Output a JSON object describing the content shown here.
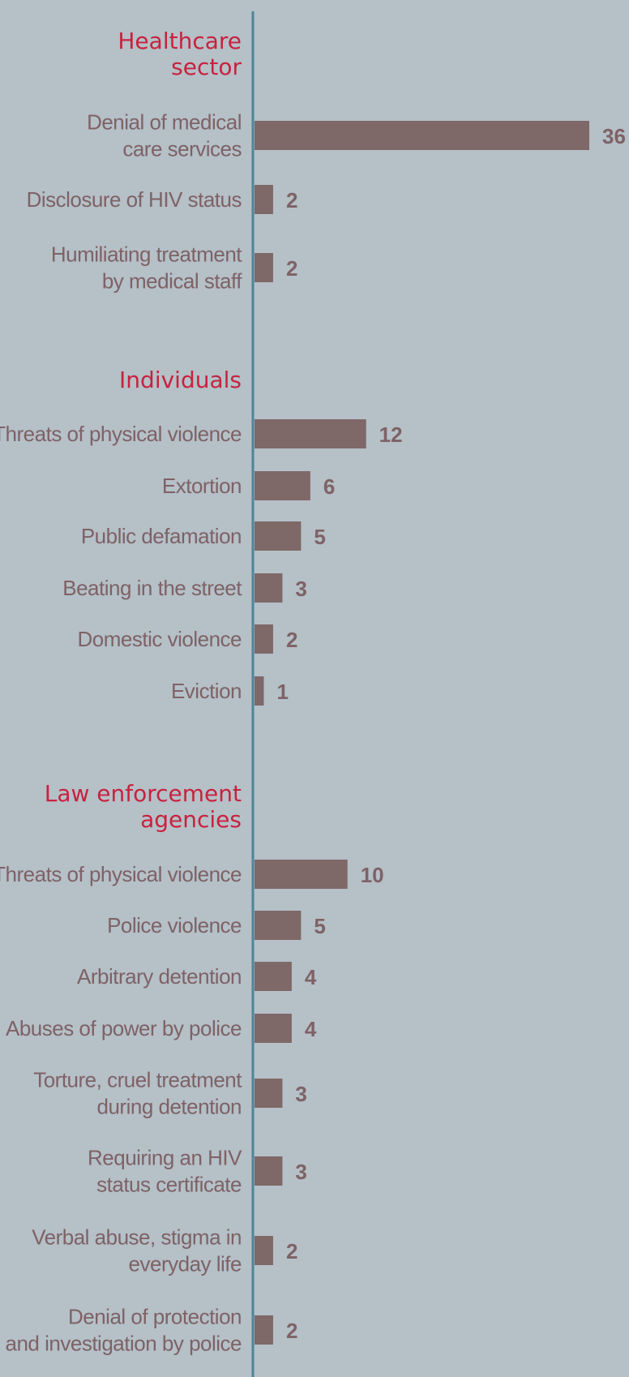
{
  "colors": {
    "background": "#b5c0c7",
    "axis": "#4d8598",
    "bar": "#7f6868",
    "label": "#7e6266",
    "section_title": "#c8223f"
  },
  "chart_data": {
    "type": "bar",
    "orientation": "horizontal",
    "xlim": [
      0,
      36
    ],
    "grid": false,
    "legend": "none",
    "groups": [
      {
        "title": [
          "Healthcare",
          "sector"
        ],
        "items": [
          {
            "label": [
              "Denial of medical",
              "care services"
            ],
            "value": 36
          },
          {
            "label": [
              "Disclosure of HIV status"
            ],
            "value": 2
          },
          {
            "label": [
              "Humiliating treatment",
              "by medical staff"
            ],
            "value": 2
          }
        ]
      },
      {
        "title": [
          "Individuals"
        ],
        "items": [
          {
            "label": [
              "Threats of physical violence"
            ],
            "value": 12
          },
          {
            "label": [
              "Extortion"
            ],
            "value": 6
          },
          {
            "label": [
              "Public defamation"
            ],
            "value": 5
          },
          {
            "label": [
              "Beating in the street"
            ],
            "value": 3
          },
          {
            "label": [
              "Domestic violence"
            ],
            "value": 2
          },
          {
            "label": [
              "Eviction"
            ],
            "value": 1
          }
        ]
      },
      {
        "title": [
          "Law enforcement",
          "agencies"
        ],
        "items": [
          {
            "label": [
              "Threats of physical violence"
            ],
            "value": 10
          },
          {
            "label": [
              "Police violence"
            ],
            "value": 5
          },
          {
            "label": [
              "Arbitrary detention"
            ],
            "value": 4
          },
          {
            "label": [
              "Abuses of power by police"
            ],
            "value": 4
          },
          {
            "label": [
              "Torture, cruel treatment",
              "during detention"
            ],
            "value": 3
          },
          {
            "label": [
              "Requiring an HIV",
              "status certificate"
            ],
            "value": 3
          },
          {
            "label": [
              "Verbal abuse, stigma in",
              "everyday life"
            ],
            "value": 2
          },
          {
            "label": [
              "Denial of protection",
              "and investigation by police"
            ],
            "value": 2
          }
        ]
      }
    ]
  }
}
